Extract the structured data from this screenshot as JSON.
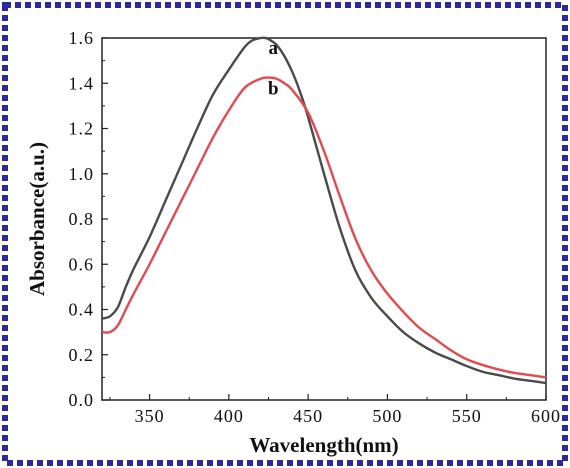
{
  "colors": {
    "frame_border": "#2a2a9e",
    "series_a": "#4a4a4a",
    "series_b": "#e8474b",
    "axis": "#222222"
  },
  "chart_data": {
    "type": "line",
    "xlabel": "Wavelength(nm)",
    "ylabel": "Absorbance(a.u.)",
    "xlim": [
      320,
      600
    ],
    "ylim": [
      0,
      1.6
    ],
    "x_ticks": [
      350,
      400,
      450,
      500,
      550,
      600
    ],
    "y_ticks": [
      0.0,
      0.2,
      0.4,
      0.6,
      0.8,
      1.0,
      1.2,
      1.4,
      1.6
    ],
    "x_tick_labels": [
      "350",
      "400",
      "450",
      "500",
      "550",
      "600"
    ],
    "y_tick_labels": [
      "0.0",
      "0.2",
      "0.4",
      "0.6",
      "0.8",
      "1.0",
      "1.2",
      "1.4",
      "1.6"
    ],
    "grid": false,
    "legend": "none",
    "series": [
      {
        "name": "a",
        "color": "#4a4a4a",
        "x": [
          320,
          325,
          330,
          335,
          340,
          350,
          360,
          370,
          380,
          390,
          400,
          410,
          415,
          420,
          423,
          425,
          430,
          435,
          440,
          445,
          450,
          460,
          470,
          480,
          490,
          500,
          510,
          520,
          530,
          540,
          550,
          560,
          570,
          580,
          590,
          600
        ],
        "y": [
          0.36,
          0.37,
          0.41,
          0.5,
          0.58,
          0.72,
          0.88,
          1.04,
          1.2,
          1.35,
          1.46,
          1.56,
          1.59,
          1.6,
          1.6,
          1.595,
          1.57,
          1.52,
          1.45,
          1.36,
          1.25,
          1.0,
          0.76,
          0.57,
          0.45,
          0.37,
          0.3,
          0.25,
          0.21,
          0.18,
          0.15,
          0.125,
          0.11,
          0.095,
          0.085,
          0.075
        ]
      },
      {
        "name": "b",
        "color": "#e8474b",
        "x": [
          320,
          325,
          330,
          335,
          340,
          350,
          360,
          370,
          380,
          390,
          400,
          410,
          420,
          425,
          430,
          435,
          440,
          450,
          460,
          470,
          480,
          490,
          500,
          510,
          520,
          530,
          540,
          550,
          560,
          570,
          580,
          590,
          600
        ],
        "y": [
          0.3,
          0.3,
          0.33,
          0.4,
          0.47,
          0.6,
          0.74,
          0.88,
          1.02,
          1.16,
          1.28,
          1.38,
          1.42,
          1.425,
          1.42,
          1.4,
          1.37,
          1.27,
          1.1,
          0.9,
          0.71,
          0.57,
          0.47,
          0.39,
          0.32,
          0.27,
          0.22,
          0.18,
          0.155,
          0.135,
          0.12,
          0.11,
          0.1
        ]
      }
    ],
    "annotations": [
      {
        "text": "a",
        "x": 428,
        "y": 1.53
      },
      {
        "text": "b",
        "x": 428,
        "y": 1.35
      }
    ]
  }
}
